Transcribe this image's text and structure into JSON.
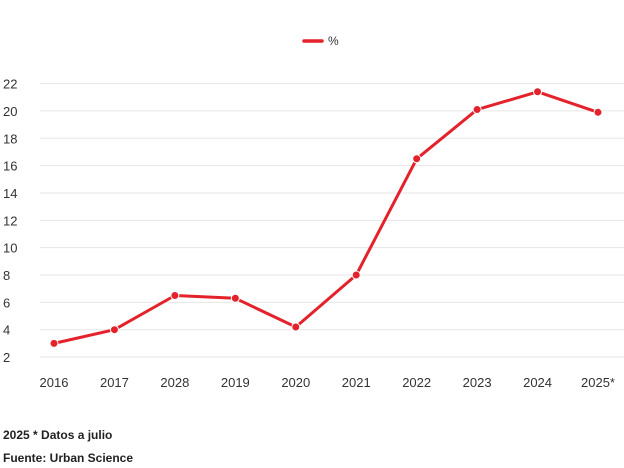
{
  "chart_data": {
    "type": "line",
    "categories": [
      "2016",
      "2017",
      "2028",
      "2019",
      "2020",
      "2021",
      "2022",
      "2023",
      "2024",
      "2025*"
    ],
    "series": [
      {
        "name": "%",
        "values": [
          3.0,
          4.0,
          6.5,
          6.3,
          4.2,
          8.0,
          16.5,
          20.1,
          21.4,
          19.9
        ]
      }
    ],
    "yticks": [
      2,
      4,
      6,
      8,
      10,
      12,
      14,
      16,
      18,
      20,
      22
    ],
    "ylim": [
      1.2,
      22.7
    ],
    "grid": true,
    "legend_position": "top-center",
    "color": "#e3222b"
  },
  "notes": {
    "note1": "2025 * Datos a julio",
    "note2": "Fuente: Urban Science"
  }
}
